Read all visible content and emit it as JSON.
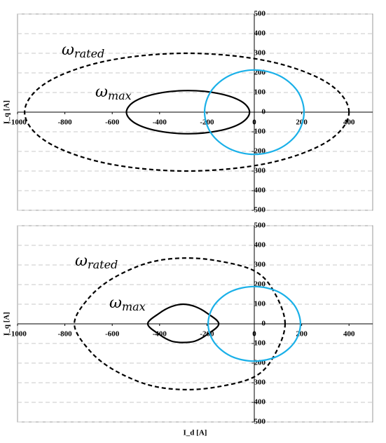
{
  "chart_data": [
    {
      "type": "line",
      "ylabel": "I_q [A]",
      "xlim": [
        -1000,
        500
      ],
      "xticks": [
        -1000,
        -800,
        -600,
        -400,
        -200,
        0,
        200,
        400
      ],
      "ylim": [
        -500,
        500
      ],
      "yticks": [
        -500,
        -400,
        -300,
        -200,
        -100,
        0,
        100,
        200,
        300,
        400,
        500
      ],
      "grid": true,
      "annotations": [
        {
          "symbol": "ω",
          "subscript": "rated"
        },
        {
          "symbol": "ω",
          "subscript": "max"
        }
      ],
      "series": [
        {
          "color": "#000000",
          "dashed": true,
          "x": [
            400,
            308,
            58,
            -285,
            -628,
            -878,
            -970,
            -878,
            -628,
            -285,
            58,
            308,
            400
          ],
          "values": [
            0,
            150,
            260,
            300,
            260,
            150,
            0,
            -150,
            -260,
            -300,
            -260,
            -150,
            0
          ]
        },
        {
          "color": "#000000",
          "dashed": false,
          "x": [
            -20,
            -55,
            -150,
            -280,
            -410,
            -505,
            -540,
            -505,
            -410,
            -280,
            -150,
            -55,
            -20
          ],
          "values": [
            0,
            55,
            95,
            110,
            95,
            55,
            0,
            -55,
            -95,
            -110,
            -95,
            -55,
            0
          ]
        },
        {
          "color": "#1ab0e8",
          "dashed": false,
          "x": [
            210,
            182,
            105,
            0,
            -105,
            -182,
            -210,
            -182,
            -105,
            0,
            105,
            182,
            210
          ],
          "values": [
            0,
            108,
            186,
            215,
            186,
            108,
            0,
            -108,
            -186,
            -215,
            -186,
            -108,
            0
          ]
        }
      ]
    },
    {
      "type": "line",
      "ylabel": "I_q [A]",
      "xlabel": "I_d [A]",
      "xlim": [
        -1000,
        500
      ],
      "xticks": [
        -1000,
        -800,
        -600,
        -400,
        -200,
        0,
        200,
        400
      ],
      "ylim": [
        -500,
        500
      ],
      "yticks": [
        -500,
        -400,
        -300,
        -200,
        -100,
        0,
        100,
        200,
        300,
        400,
        500
      ],
      "grid": true,
      "annotations": [
        {
          "symbol": "ω",
          "subscript": "rated"
        },
        {
          "symbol": "ω",
          "subscript": "max"
        }
      ],
      "series": [
        {
          "color": "#000000",
          "dashed": true,
          "x": [
            130,
            80,
            0,
            -150,
            -300,
            -450,
            -600,
            -700,
            -760,
            -700,
            -600,
            -450,
            -300,
            -150,
            0,
            80,
            130
          ],
          "values": [
            0,
            170,
            270,
            320,
            335,
            310,
            230,
            130,
            0,
            -130,
            -230,
            -310,
            -335,
            -320,
            -270,
            -170,
            0
          ]
        },
        {
          "color": "#000000",
          "dashed": false,
          "x": [
            -150,
            -200,
            -250,
            -300,
            -350,
            -400,
            -450,
            -400,
            -350,
            -300,
            -250,
            -200,
            -150
          ],
          "values": [
            0,
            55,
            88,
            100,
            88,
            55,
            0,
            -55,
            -88,
            -95,
            -88,
            -55,
            0
          ]
        },
        {
          "color": "#1ab0e8",
          "dashed": false,
          "x": [
            195,
            169,
            98,
            0,
            -98,
            -169,
            -195,
            -169,
            -98,
            0,
            98,
            169,
            195
          ],
          "values": [
            0,
            95,
            165,
            190,
            165,
            95,
            0,
            -95,
            -165,
            -190,
            -165,
            -95,
            0
          ]
        }
      ]
    }
  ]
}
